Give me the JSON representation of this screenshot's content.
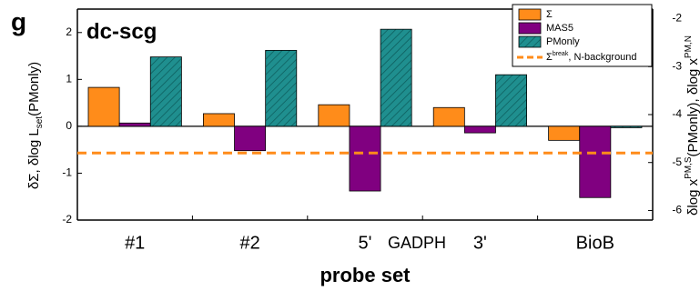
{
  "chart_data": {
    "type": "bar",
    "panel_label": "g",
    "title": "dc-scg",
    "xlabel": "probe set",
    "ylabel_parts": [
      "δΣ, δlog L",
      "set",
      "(PMonly)"
    ],
    "y2label_parts": [
      "δlog x",
      "PM,S",
      "(PMonly)",
      ", δlog x",
      "PM,N"
    ],
    "annotation": "GADPH",
    "categories": [
      "#1",
      "#2",
      "5'",
      "3'",
      "BioB"
    ],
    "series": [
      {
        "name": "Σ",
        "color": "#ff8c1a",
        "values": [
          0.83,
          0.27,
          0.46,
          0.4,
          -0.3
        ]
      },
      {
        "name": "MAS5",
        "color": "#800080",
        "values": [
          0.07,
          -0.52,
          -1.38,
          -0.14,
          -1.52
        ]
      },
      {
        "name": "PMonly",
        "color": "#1f8f8f",
        "hatch": true,
        "values": [
          1.48,
          1.62,
          2.07,
          1.1,
          -0.03
        ]
      }
    ],
    "threshold": {
      "name_parts": [
        "Σ",
        "break",
        ", N-background"
      ],
      "color": "#ff8c1a",
      "value": -0.57
    },
    "ylim": [
      -2,
      2.5
    ],
    "yticks": [
      -2,
      -1,
      0,
      1,
      2
    ],
    "y2lim": [
      -6.2,
      -1.8
    ],
    "y2ticks": [
      -6,
      -5,
      -4,
      -3,
      -2
    ]
  }
}
